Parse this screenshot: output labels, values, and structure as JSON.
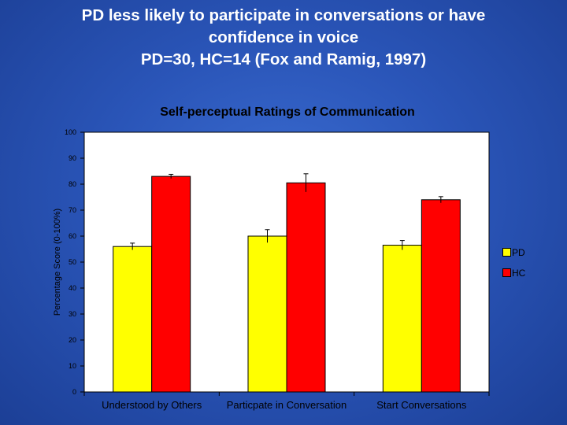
{
  "slide": {
    "title_lines": [
      "PD less likely to participate in conversations or have",
      "confidence in voice",
      "PD=30, HC=14  (Fox and Ramig, 1997)"
    ]
  },
  "colors": {
    "background": "#2a55b8",
    "plot_area": "#ffffff",
    "pd": "#ffff00",
    "hc": "#ff0000"
  },
  "chart_data": {
    "type": "bar",
    "title": "Self-perceptual Ratings of Communication",
    "xlabel": "",
    "ylabel": "Percentage Score (0-100%)",
    "ylim": [
      0,
      100
    ],
    "yticks": [
      0,
      10,
      20,
      30,
      40,
      50,
      60,
      70,
      80,
      90,
      100
    ],
    "grid": false,
    "legend_position": "right",
    "categories": [
      "Understood by Others",
      "Particpate in Conversation",
      "Start Conversations"
    ],
    "series": [
      {
        "name": "PD",
        "color": "#ffff00",
        "values": [
          56,
          60,
          56.5
        ],
        "errors": [
          1.3,
          2.5,
          1.8
        ]
      },
      {
        "name": "HC",
        "color": "#ff0000",
        "values": [
          83,
          80.5,
          74
        ],
        "errors": [
          0.8,
          3.5,
          1.2
        ]
      }
    ]
  }
}
